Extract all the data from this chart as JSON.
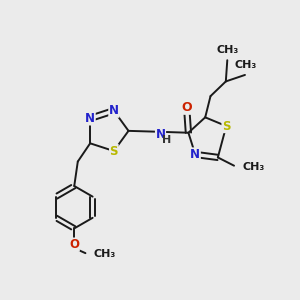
{
  "bg_color": "#ebebeb",
  "bond_color": "#1a1a1a",
  "N_color": "#2222cc",
  "S_color": "#b8b800",
  "O_color": "#cc2200",
  "font_size": 8.5,
  "line_width": 1.4,
  "figsize": [
    3.0,
    3.0
  ],
  "dpi": 100,
  "xlim": [
    0,
    10
  ],
  "ylim": [
    0,
    10
  ]
}
